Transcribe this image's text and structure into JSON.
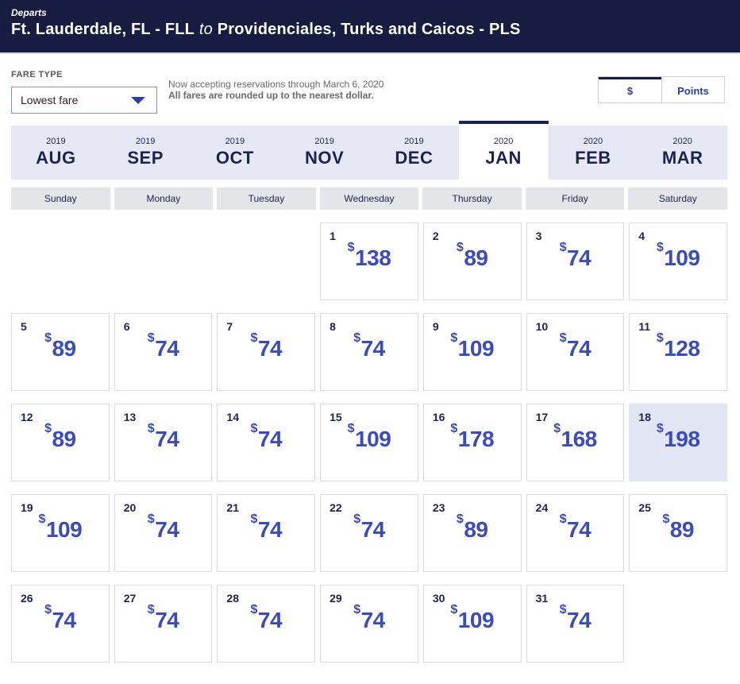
{
  "header": {
    "eyebrow": "Departs",
    "route_from": "Ft. Lauderdale, FL - FLL",
    "route_connector": "to",
    "route_to": "Providenciales, Turks and Caicos - PLS"
  },
  "fare_type": {
    "label": "FARE TYPE",
    "selected_value": "Lowest fare",
    "dropdown_icon": "caret-down-icon"
  },
  "notice": {
    "line1": "Now accepting reservations through March 6, 2020",
    "line2": "All fares are rounded up to the nearest dollar."
  },
  "currency_toggle": {
    "options": [
      {
        "label": "$",
        "selected": true
      },
      {
        "label": "Points",
        "selected": false
      }
    ]
  },
  "month_tabs": [
    {
      "year": "2019",
      "month": "AUG",
      "selected": false
    },
    {
      "year": "2019",
      "month": "SEP",
      "selected": false
    },
    {
      "year": "2019",
      "month": "OCT",
      "selected": false
    },
    {
      "year": "2019",
      "month": "NOV",
      "selected": false
    },
    {
      "year": "2019",
      "month": "DEC",
      "selected": false
    },
    {
      "year": "2020",
      "month": "JAN",
      "selected": true
    },
    {
      "year": "2020",
      "month": "FEB",
      "selected": false
    },
    {
      "year": "2020",
      "month": "MAR",
      "selected": false
    }
  ],
  "weekday_headers": [
    "Sunday",
    "Monday",
    "Tuesday",
    "Wednesday",
    "Thursday",
    "Friday",
    "Saturday"
  ],
  "calendar": {
    "currency_symbol": "$",
    "first_day_column": 3,
    "selected_day": 18,
    "days": [
      {
        "day": 1,
        "fare": 138
      },
      {
        "day": 2,
        "fare": 89
      },
      {
        "day": 3,
        "fare": 74
      },
      {
        "day": 4,
        "fare": 109
      },
      {
        "day": 5,
        "fare": 89
      },
      {
        "day": 6,
        "fare": 74
      },
      {
        "day": 7,
        "fare": 74
      },
      {
        "day": 8,
        "fare": 74
      },
      {
        "day": 9,
        "fare": 109
      },
      {
        "day": 10,
        "fare": 74
      },
      {
        "day": 11,
        "fare": 128
      },
      {
        "day": 12,
        "fare": 89
      },
      {
        "day": 13,
        "fare": 74
      },
      {
        "day": 14,
        "fare": 74
      },
      {
        "day": 15,
        "fare": 109
      },
      {
        "day": 16,
        "fare": 178
      },
      {
        "day": 17,
        "fare": 168
      },
      {
        "day": 18,
        "fare": 198
      },
      {
        "day": 19,
        "fare": 109
      },
      {
        "day": 20,
        "fare": 74
      },
      {
        "day": 21,
        "fare": 74
      },
      {
        "day": 22,
        "fare": 74
      },
      {
        "day": 23,
        "fare": 89
      },
      {
        "day": 24,
        "fare": 74
      },
      {
        "day": 25,
        "fare": 89
      },
      {
        "day": 26,
        "fare": 74
      },
      {
        "day": 27,
        "fare": 74
      },
      {
        "day": 28,
        "fare": 74
      },
      {
        "day": 29,
        "fare": 74
      },
      {
        "day": 30,
        "fare": 109
      },
      {
        "day": 31,
        "fare": 74
      }
    ]
  },
  "colors": {
    "header_bg": "#161d40",
    "navy_text": "#1b2450",
    "accent_blue": "#3a4bba",
    "tab_strip_bg": "#e6e9f5",
    "selected_day_bg": "#e2e6f4",
    "weekday_bg": "#e4e5e8"
  }
}
